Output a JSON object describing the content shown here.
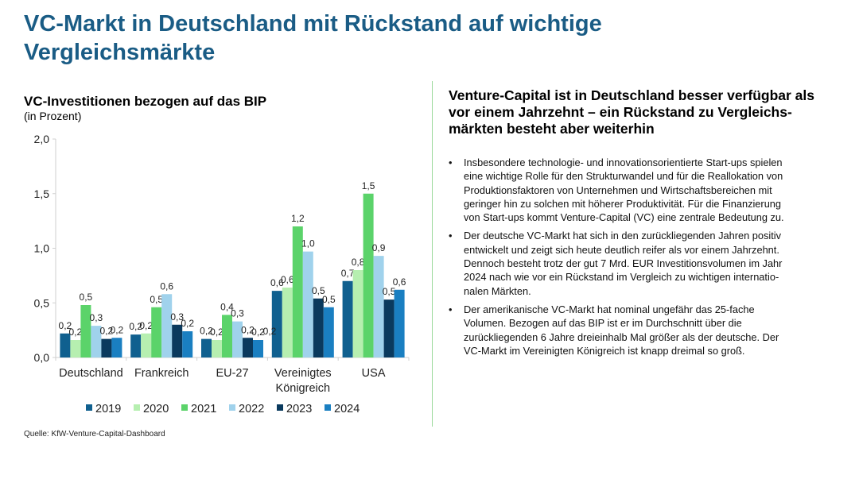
{
  "title": "VC-Markt in Deutschland mit Rückstand auf wichtige Vergleichsmärkte",
  "source": "Quelle: KfW-Venture-Capital-Dashboard",
  "right": {
    "heading": "Venture-Capital ist in Deutschland besser verfügbar als vor einem Jahrzehnt – ein Rückstand zu Vergleichs-märkten besteht aber weiterhin",
    "heading_lines": [
      "Venture-Capital ist in Deutschland besser verfügbar als",
      "vor einem Jahrzehnt – ein Rückstand zu Vergleichs-",
      "märkten besteht aber weiterhin"
    ],
    "bullet_symbol": "•",
    "bullets": [
      {
        "lines": [
          "Insbesondere technologie- und innovationsorientierte Start-ups spielen",
          "eine wichtige Rolle für den Strukturwandel und für die Reallokation von",
          "Produktionsfaktoren von Unternehmen und Wirtschaftsbereichen mit",
          "geringer hin zu solchen mit höherer Produktivität. Für die Finanzierung",
          "von Start-ups kommt Venture-Capital (VC) eine zentrale Bedeutung zu."
        ]
      },
      {
        "lines": [
          "Der deutsche VC-Markt hat sich in den zurückliegenden Jahren positiv",
          "entwickelt und zeigt sich heute deutlich reifer als vor einem Jahrzehnt.",
          "Dennoch besteht trotz der gut 7 Mrd. EUR Investitionsvolumen im Jahr",
          "2024 nach wie vor ein Rückstand im Vergleich zu wichtigen internatio-",
          "nalen Märkten."
        ]
      },
      {
        "lines": [
          "Der amerikanische VC-Markt hat nominal ungefähr das 25-fache",
          "Volumen. Bezogen auf das BIP ist er im Durchschnitt über die",
          "zurückliegenden 6 Jahre dreieinhalb Mal größer als der deutsche. Der",
          "VC-Markt im Vereinigten Königreich ist knapp dreimal so groß."
        ]
      }
    ]
  },
  "chart_data": {
    "type": "bar",
    "title": "VC-Investitionen bezogen auf das BIP",
    "subtitle": "(in Prozent)",
    "categories": [
      [
        "Deutschland"
      ],
      [
        "Frankreich"
      ],
      [
        "EU-27"
      ],
      [
        "Vereinigtes",
        "Königreich"
      ],
      [
        "USA"
      ]
    ],
    "ylim": [
      0,
      2.0
    ],
    "yticks": [
      "0,0",
      "0,5",
      "1,0",
      "1,5",
      "2,0"
    ],
    "grid": false,
    "legend": "bottom",
    "series": [
      {
        "name": "2019",
        "color": "#10608f",
        "values": [
          0.22,
          0.21,
          0.17,
          0.61,
          0.7
        ],
        "labels": [
          "0,2",
          "0,2",
          "0,2",
          "0,6",
          "0,7"
        ]
      },
      {
        "name": "2020",
        "color": "#b6efb0",
        "values": [
          0.16,
          0.22,
          0.16,
          0.64,
          0.8
        ],
        "labels": [
          "0,2",
          "0,2",
          "0,2",
          "0,6",
          "0,8"
        ]
      },
      {
        "name": "2021",
        "color": "#5bd36a",
        "values": [
          0.48,
          0.46,
          0.39,
          1.2,
          1.5
        ],
        "labels": [
          "0,5",
          "0,5",
          "0,4",
          "1,2",
          "1,5"
        ]
      },
      {
        "name": "2022",
        "color": "#a0d2ec",
        "values": [
          0.29,
          0.58,
          0.33,
          0.97,
          0.93
        ],
        "labels": [
          "0,3",
          "0,6",
          "0,3",
          "1,0",
          "0,9"
        ]
      },
      {
        "name": "2023",
        "color": "#0a3a5e",
        "values": [
          0.17,
          0.3,
          0.18,
          0.54,
          0.53
        ],
        "labels": [
          "0,2",
          "0,3",
          "0,2",
          "0,5",
          "0,5"
        ]
      },
      {
        "name": "2024",
        "color": "#1a7fc1",
        "values": [
          0.18,
          0.24,
          0.16,
          0.46,
          0.62
        ],
        "labels": [
          "0,2",
          "0,2",
          "0,2",
          "0,5",
          "0,6"
        ]
      }
    ],
    "extra_label": "0,2"
  }
}
